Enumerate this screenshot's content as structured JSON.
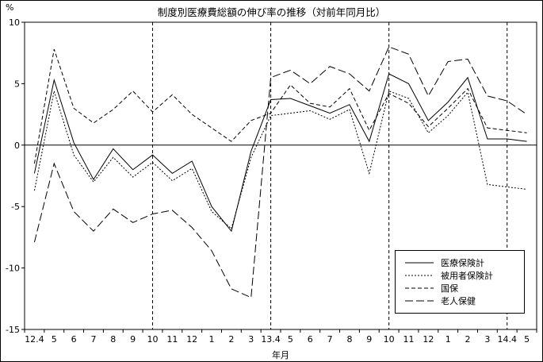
{
  "chart_data": {
    "type": "line",
    "title": "制度別医療費総額の伸び率の推移（対前年同月比）",
    "xlabel": "年月",
    "ylabel": "%",
    "ylim": [
      -15,
      10
    ],
    "yticks": [
      10,
      5,
      0,
      -5,
      -10,
      -15
    ],
    "grid": "vertical-dashed-only",
    "legend_position": "inside-lower-right",
    "categories": [
      "12.4",
      "5",
      "6",
      "7",
      "8",
      "9",
      "10",
      "11",
      "12",
      "1",
      "2",
      "3",
      "13.4",
      "5",
      "6",
      "7",
      "8",
      "9",
      "10",
      "11",
      "12",
      "1",
      "2",
      "3",
      "14.4",
      "5"
    ],
    "vertical_gridline_indices": [
      6,
      12,
      18,
      24
    ],
    "series": [
      {
        "name": "医療保険計",
        "dash": "solid",
        "values": [
          -2.3,
          5.3,
          0.2,
          -2.8,
          -0.3,
          -2.0,
          -0.8,
          -2.3,
          -1.3,
          -5.0,
          -7.0,
          -0.5,
          3.7,
          3.8,
          3.2,
          2.6,
          3.3,
          0.3,
          5.8,
          5.0,
          2.0,
          3.5,
          5.5,
          0.5,
          0.5,
          0.3
        ]
      },
      {
        "name": "被用者保険計",
        "dash": "short-dash",
        "values": [
          -3.7,
          4.4,
          -0.8,
          -3.0,
          -1.0,
          -2.6,
          -1.4,
          -2.9,
          -1.9,
          -5.4,
          -6.8,
          -1.0,
          2.4,
          2.6,
          2.8,
          2.1,
          2.9,
          -2.3,
          4.4,
          3.8,
          1.0,
          2.4,
          4.3,
          -3.2,
          -3.4,
          -3.6
        ]
      },
      {
        "name": "国保",
        "dash": "dash",
        "values": [
          -1.5,
          7.8,
          3.0,
          1.8,
          2.9,
          4.4,
          2.7,
          4.1,
          2.5,
          1.4,
          0.3,
          2.0,
          2.6,
          4.9,
          3.4,
          3.1,
          4.6,
          1.2,
          4.2,
          3.4,
          1.5,
          3.0,
          4.6,
          1.4,
          1.2,
          1.0
        ]
      },
      {
        "name": "老人保健",
        "dash": "long-dash",
        "values": [
          -7.9,
          -1.5,
          -5.4,
          -7.0,
          -5.2,
          -6.3,
          -5.6,
          -5.3,
          -6.7,
          -8.6,
          -11.7,
          -12.4,
          5.5,
          6.1,
          5.0,
          6.4,
          5.8,
          4.4,
          8.0,
          7.4,
          4.0,
          6.8,
          7.0,
          4.0,
          3.6,
          2.5
        ]
      }
    ],
    "colors": {
      "line": "#000000",
      "background": "#ffffff"
    }
  }
}
